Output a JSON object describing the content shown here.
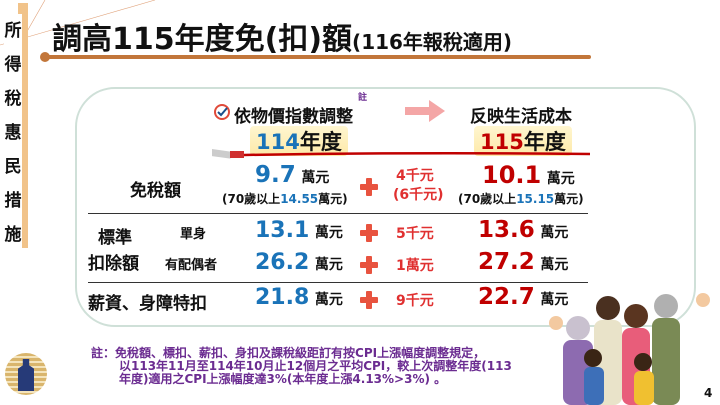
{
  "sidebar": {
    "label": "所得稅惠民措施"
  },
  "header": {
    "title": "調高115年度免(扣)額",
    "subtitle": "(116年報稅適用)"
  },
  "comparison": {
    "method": "依物價指數調整",
    "note_mark": "註",
    "result": "反映生活成本",
    "year_old": "114",
    "year_new": "115",
    "year_suffix": "年度"
  },
  "rows": {
    "exemption": {
      "label": "免稅額",
      "old": "9.7",
      "unit": "萬元",
      "old_sub_prefix": "(70歲以上",
      "old_sub_value": "14.55",
      "old_sub_suffix": "萬元)",
      "inc": "4千元",
      "inc_sub": "(6千元)",
      "new": "10.1",
      "new_sub_prefix": "(70歲以上",
      "new_sub_value": "15.15",
      "new_sub_suffix": "萬元)"
    },
    "standard_label1": "標準",
    "standard_label2": "扣除額",
    "single": {
      "label": "單身",
      "old": "13.1",
      "inc": "5千元",
      "new": "13.6"
    },
    "married": {
      "label": "有配偶者",
      "old": "26.2",
      "inc": "1萬元",
      "new": "27.2"
    },
    "salary": {
      "label": "薪資、身障特扣",
      "old": "21.8",
      "inc": "9千元",
      "new": "22.7"
    }
  },
  "footnote": {
    "prefix": "註：",
    "line1": "免稅額、標扣、薪扣、身扣及課稅級距訂有按CPI上漲幅度調整規定，",
    "line2": "以113年11月至114年10月止12個月之平均CPI，較上次調整年度(113",
    "line3": "年度)適用之CPI上漲幅度達3%(本年度上漲4.13%>3%) 。"
  },
  "page_number": "4",
  "colors": {
    "accent": "#c2763a",
    "blue": "#1a73b8",
    "red": "#c00000",
    "note": "#6b2c91",
    "sidebar": "#f1c38a"
  }
}
